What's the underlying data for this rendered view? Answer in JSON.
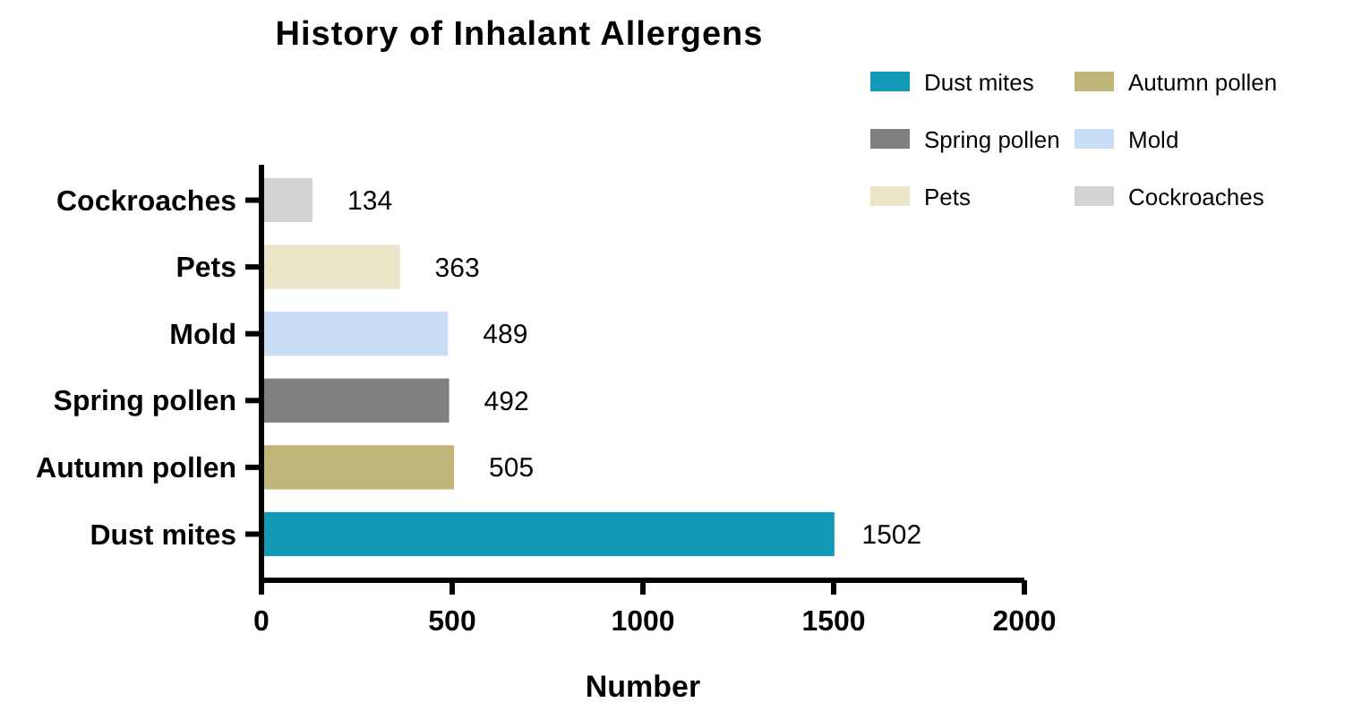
{
  "chart_data": {
    "type": "bar",
    "orientation": "horizontal",
    "title": "History of Inhalant Allergens",
    "xlabel": "Number",
    "categories": [
      "Cockroaches",
      "Pets",
      "Mold",
      "Spring pollen",
      "Autumn pollen",
      "Dust mites"
    ],
    "series": [
      {
        "name": "Dust mites",
        "color": "#1399b5",
        "values": [
          null,
          null,
          null,
          null,
          null,
          1502
        ]
      },
      {
        "name": "Autumn pollen",
        "color": "#c0b67a",
        "values": [
          null,
          null,
          null,
          null,
          505,
          null
        ]
      },
      {
        "name": "Spring pollen",
        "color": "#808080",
        "values": [
          null,
          null,
          null,
          492,
          null,
          null
        ]
      },
      {
        "name": "Mold",
        "color": "#c8dcf6",
        "values": [
          null,
          null,
          489,
          null,
          null,
          null
        ]
      },
      {
        "name": "Pets",
        "color": "#ece4c6",
        "values": [
          null,
          363,
          null,
          null,
          null,
          null
        ]
      },
      {
        "name": "Cockroaches",
        "color": "#d3d3d3",
        "values": [
          134,
          null,
          null,
          null,
          null,
          null
        ]
      }
    ],
    "xlim": [
      0,
      2000
    ],
    "xticks": [
      0,
      500,
      1000,
      1500,
      2000
    ],
    "data_labels": true,
    "legend": "top right"
  }
}
